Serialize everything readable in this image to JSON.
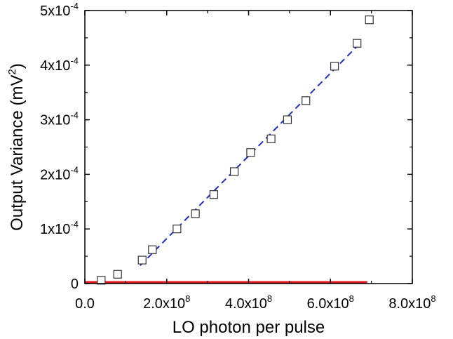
{
  "chart_data": {
    "type": "scatter",
    "xlabel": "LO photon per pulse",
    "ylabel": "Output Variance (mV",
    "ylabel_superscript": "2",
    "ylabel_suffix": ")",
    "xlim": [
      0,
      800000000
    ],
    "ylim": [
      0,
      0.0005
    ],
    "grid": false,
    "x_ticks": [
      {
        "value": 0,
        "mantissa": "0.0",
        "exponent": ""
      },
      {
        "value": 200000000,
        "mantissa": "2.0x10",
        "exponent": "8"
      },
      {
        "value": 400000000,
        "mantissa": "4.0x10",
        "exponent": "8"
      },
      {
        "value": 600000000,
        "mantissa": "6.0x10",
        "exponent": "8"
      },
      {
        "value": 800000000,
        "mantissa": "8.0x10",
        "exponent": "8"
      }
    ],
    "y_ticks": [
      {
        "value": 0,
        "mantissa": "0",
        "exponent": ""
      },
      {
        "value": 0.0001,
        "mantissa": "1x10",
        "exponent": "-4"
      },
      {
        "value": 0.0002,
        "mantissa": "2x10",
        "exponent": "-4"
      },
      {
        "value": 0.0003,
        "mantissa": "3x10",
        "exponent": "-4"
      },
      {
        "value": 0.0004,
        "mantissa": "4x10",
        "exponent": "-4"
      },
      {
        "value": 0.0005,
        "mantissa": "5x10",
        "exponent": "-4"
      }
    ],
    "series": [
      {
        "kind": "scatter",
        "marker": "open-square",
        "color": "#333333",
        "points": [
          [
            40000000,
            6e-06
          ],
          [
            80000000,
            1.7e-05
          ],
          [
            140000000,
            4.3e-05
          ],
          [
            165000000,
            6.2e-05
          ],
          [
            225000000,
            0.0001
          ],
          [
            270000000,
            0.000128
          ],
          [
            315000000,
            0.000163
          ],
          [
            365000000,
            0.000205
          ],
          [
            405000000,
            0.00024
          ],
          [
            455000000,
            0.000265
          ],
          [
            495000000,
            0.0003
          ],
          [
            540000000,
            0.000335
          ],
          [
            610000000,
            0.000398
          ],
          [
            665000000,
            0.00044
          ],
          [
            695000000,
            0.000483
          ]
        ]
      },
      {
        "kind": "line",
        "style": "dashed",
        "color": "#1f2fbf",
        "points": [
          [
            135000000,
            3.3e-05
          ],
          [
            675000000,
            0.000442
          ]
        ]
      },
      {
        "kind": "line",
        "style": "solid",
        "color": "#e0191e",
        "points": [
          [
            0,
            2.5e-06
          ],
          [
            690000000,
            2.5e-06
          ]
        ]
      }
    ]
  }
}
